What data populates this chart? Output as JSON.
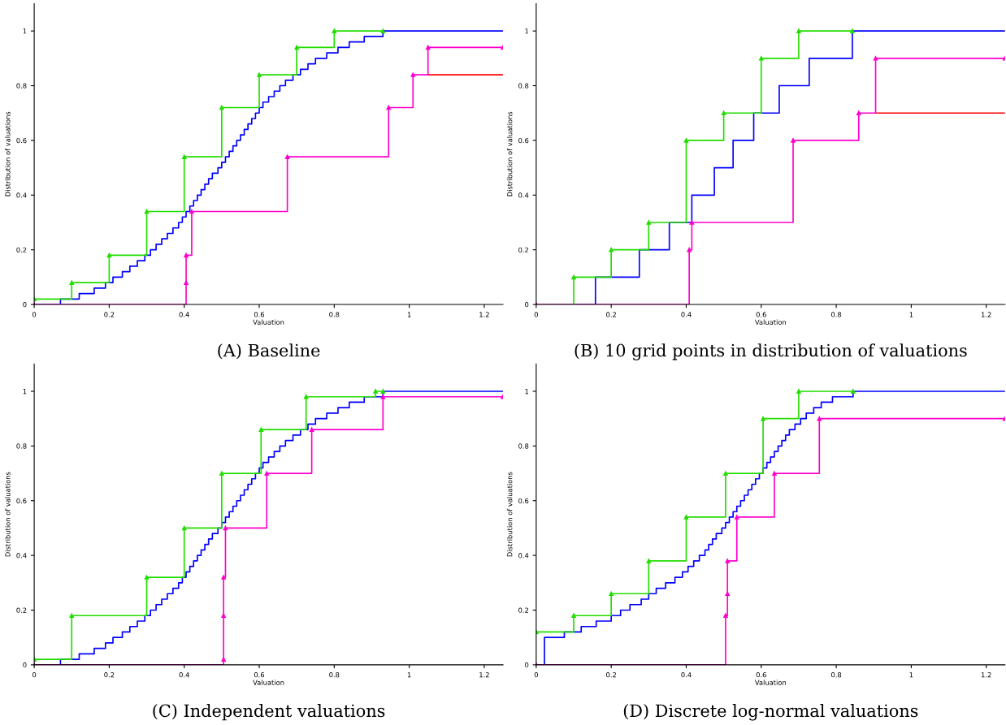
{
  "chart_data": [
    {
      "type": "step",
      "title": "(A) Baseline",
      "xlabel": "Valuation",
      "ylabel": "Distribution of valuations",
      "xlim": [
        0,
        1.25
      ],
      "ylim": [
        0,
        1.1
      ],
      "xticks": [
        0,
        0.2,
        0.4,
        0.6,
        0.8,
        1,
        1.2
      ],
      "yticks": [
        0,
        0.2,
        0.4,
        0.6,
        0.8,
        1
      ],
      "grid": false,
      "legend": false,
      "line_style": "solid",
      "series": [
        {
          "color": "#0000ff",
          "marker": "none",
          "x": [
            0,
            0.07,
            0.12,
            0.16,
            0.19,
            0.21,
            0.235,
            0.255,
            0.275,
            0.295,
            0.31,
            0.325,
            0.34,
            0.355,
            0.37,
            0.385,
            0.395,
            0.405,
            0.415,
            0.425,
            0.435,
            0.445,
            0.455,
            0.465,
            0.475,
            0.49,
            0.5,
            0.51,
            0.52,
            0.53,
            0.54,
            0.55,
            0.56,
            0.57,
            0.58,
            0.59,
            0.6,
            0.61,
            0.625,
            0.64,
            0.655,
            0.67,
            0.69,
            0.71,
            0.73,
            0.75,
            0.78,
            0.81,
            0.84,
            0.88,
            0.93,
            1.25
          ],
          "values": [
            0,
            0.02,
            0.04,
            0.06,
            0.08,
            0.1,
            0.12,
            0.14,
            0.16,
            0.18,
            0.2,
            0.22,
            0.24,
            0.26,
            0.28,
            0.3,
            0.32,
            0.34,
            0.36,
            0.38,
            0.4,
            0.42,
            0.44,
            0.46,
            0.48,
            0.5,
            0.52,
            0.54,
            0.56,
            0.58,
            0.6,
            0.62,
            0.64,
            0.66,
            0.68,
            0.7,
            0.72,
            0.74,
            0.76,
            0.78,
            0.8,
            0.82,
            0.84,
            0.86,
            0.88,
            0.9,
            0.92,
            0.94,
            0.96,
            0.98,
            1,
            1
          ]
        },
        {
          "color": "#22dd00",
          "marker": "triangle",
          "x": [
            0,
            0.1,
            0.2,
            0.3,
            0.4,
            0.5,
            0.6,
            0.7,
            0.8,
            0.93
          ],
          "values": [
            0.02,
            0.08,
            0.18,
            0.34,
            0.54,
            0.72,
            0.84,
            0.94,
            1,
            1
          ]
        },
        {
          "color": "#ff0000",
          "marker": "none",
          "x": [
            1.05,
            1.25
          ],
          "values": [
            0.84,
            0.84
          ]
        },
        {
          "color": "#ff00cc",
          "marker": "triangle",
          "x": [
            0,
            0.405,
            0.405,
            0.42,
            0.675,
            0.945,
            1.01,
            1.05,
            1.25
          ],
          "values": [
            0,
            0.08,
            0.18,
            0.34,
            0.54,
            0.72,
            0.84,
            0.94,
            0.94
          ]
        }
      ]
    },
    {
      "type": "step",
      "title": "(B) 10 grid points in distribution of valuations",
      "xlabel": "Valuation",
      "ylabel": "Distribution of valuations",
      "xlim": [
        0,
        1.25
      ],
      "ylim": [
        0,
        1.1
      ],
      "xticks": [
        0,
        0.2,
        0.4,
        0.6,
        0.8,
        1,
        1.2
      ],
      "yticks": [
        0,
        0.2,
        0.4,
        0.6,
        0.8,
        1
      ],
      "grid": false,
      "legend": false,
      "line_style": "solid",
      "series": [
        {
          "color": "#0000ff",
          "marker": "none",
          "x": [
            0,
            0.158,
            0.275,
            0.355,
            0.415,
            0.475,
            0.525,
            0.58,
            0.648,
            0.728,
            0.843,
            1.25
          ],
          "values": [
            0,
            0.1,
            0.2,
            0.3,
            0.4,
            0.5,
            0.6,
            0.7,
            0.8,
            0.9,
            1,
            1
          ]
        },
        {
          "color": "#22dd00",
          "marker": "triangle",
          "x": [
            0,
            0.1,
            0.2,
            0.3,
            0.4,
            0.5,
            0.6,
            0.7,
            0.843
          ],
          "values": [
            0,
            0.1,
            0.2,
            0.3,
            0.6,
            0.7,
            0.9,
            1,
            1
          ]
        },
        {
          "color": "#ff0000",
          "marker": "none",
          "x": [
            0.905,
            1.25
          ],
          "values": [
            0.7,
            0.7
          ]
        },
        {
          "color": "#ff00cc",
          "marker": "triangle",
          "x": [
            0,
            0.408,
            0.415,
            0.685,
            0.86,
            0.905,
            1.25
          ],
          "values": [
            0,
            0.2,
            0.3,
            0.6,
            0.7,
            0.9,
            0.9
          ]
        }
      ]
    },
    {
      "type": "step",
      "title": "(C) Independent valuations",
      "xlabel": "Valuation",
      "ylabel": "Distribution of valuations",
      "xlim": [
        0,
        1.25
      ],
      "ylim": [
        0,
        1.1
      ],
      "xticks": [
        0,
        0.2,
        0.4,
        0.6,
        0.8,
        1,
        1.2
      ],
      "yticks": [
        0,
        0.2,
        0.4,
        0.6,
        0.8,
        1
      ],
      "grid": false,
      "legend": false,
      "line_style": "solid",
      "series": [
        {
          "color": "#0000ff",
          "marker": "none",
          "x": [
            0,
            0.07,
            0.12,
            0.16,
            0.19,
            0.21,
            0.235,
            0.255,
            0.275,
            0.295,
            0.31,
            0.325,
            0.34,
            0.355,
            0.37,
            0.385,
            0.395,
            0.405,
            0.415,
            0.425,
            0.435,
            0.445,
            0.455,
            0.465,
            0.475,
            0.49,
            0.5,
            0.51,
            0.52,
            0.53,
            0.54,
            0.55,
            0.56,
            0.57,
            0.58,
            0.59,
            0.6,
            0.61,
            0.625,
            0.64,
            0.655,
            0.67,
            0.69,
            0.71,
            0.73,
            0.75,
            0.78,
            0.81,
            0.84,
            0.88,
            0.93,
            1.25
          ],
          "values": [
            0,
            0.02,
            0.04,
            0.06,
            0.08,
            0.1,
            0.12,
            0.14,
            0.16,
            0.18,
            0.2,
            0.22,
            0.24,
            0.26,
            0.28,
            0.3,
            0.32,
            0.34,
            0.36,
            0.38,
            0.4,
            0.42,
            0.44,
            0.46,
            0.48,
            0.5,
            0.52,
            0.54,
            0.56,
            0.58,
            0.6,
            0.62,
            0.64,
            0.66,
            0.68,
            0.7,
            0.72,
            0.74,
            0.76,
            0.78,
            0.8,
            0.82,
            0.84,
            0.86,
            0.88,
            0.9,
            0.92,
            0.94,
            0.96,
            0.98,
            1,
            1
          ]
        },
        {
          "color": "#22dd00",
          "marker": "triangle",
          "x": [
            0,
            0.1,
            0.3,
            0.4,
            0.5,
            0.605,
            0.725,
            0.91,
            0.93
          ],
          "values": [
            0.02,
            0.18,
            0.32,
            0.5,
            0.7,
            0.86,
            0.98,
            1,
            1
          ]
        },
        {
          "color": "#ff00cc",
          "marker": "triangle",
          "x": [
            0,
            0.505,
            0.505,
            0.505,
            0.51,
            0.62,
            0.74,
            0.93,
            1.25
          ],
          "values": [
            0,
            0.02,
            0.18,
            0.32,
            0.5,
            0.7,
            0.86,
            0.98,
            0.98
          ]
        }
      ]
    },
    {
      "type": "step",
      "title": "(D) Discrete log-normal valuations",
      "xlabel": "Valuation",
      "ylabel": "Distribution of valuations",
      "xlim": [
        0,
        1.25
      ],
      "ylim": [
        0,
        1.1
      ],
      "xticks": [
        0,
        0.2,
        0.4,
        0.6,
        0.8,
        1,
        1.2
      ],
      "yticks": [
        0,
        0.2,
        0.4,
        0.6,
        0.8,
        1
      ],
      "grid": false,
      "legend": false,
      "line_style": "solid",
      "series": [
        {
          "color": "#0000ff",
          "marker": "none",
          "x": [
            0,
            0.022,
            0.075,
            0.12,
            0.16,
            0.2,
            0.225,
            0.25,
            0.28,
            0.3,
            0.32,
            0.345,
            0.37,
            0.39,
            0.405,
            0.42,
            0.435,
            0.45,
            0.46,
            0.47,
            0.48,
            0.495,
            0.505,
            0.515,
            0.525,
            0.535,
            0.545,
            0.555,
            0.565,
            0.575,
            0.585,
            0.595,
            0.605,
            0.615,
            0.625,
            0.635,
            0.645,
            0.655,
            0.665,
            0.675,
            0.69,
            0.705,
            0.72,
            0.74,
            0.76,
            0.79,
            0.845,
            1.25
          ],
          "values": [
            0,
            0.1,
            0.12,
            0.14,
            0.16,
            0.18,
            0.2,
            0.22,
            0.24,
            0.26,
            0.28,
            0.3,
            0.32,
            0.34,
            0.36,
            0.38,
            0.4,
            0.42,
            0.44,
            0.46,
            0.48,
            0.5,
            0.52,
            0.54,
            0.56,
            0.58,
            0.6,
            0.62,
            0.64,
            0.66,
            0.68,
            0.7,
            0.72,
            0.74,
            0.76,
            0.78,
            0.8,
            0.82,
            0.84,
            0.86,
            0.88,
            0.9,
            0.92,
            0.94,
            0.96,
            0.98,
            1,
            1
          ]
        },
        {
          "color": "#22dd00",
          "marker": "triangle",
          "x": [
            0,
            0.1,
            0.2,
            0.3,
            0.4,
            0.505,
            0.605,
            0.7,
            0.845
          ],
          "values": [
            0.12,
            0.18,
            0.26,
            0.38,
            0.54,
            0.7,
            0.9,
            1,
            1
          ]
        },
        {
          "color": "#ff00cc",
          "marker": "triangle",
          "x": [
            0,
            0.505,
            0.51,
            0.51,
            0.535,
            0.635,
            0.755,
            1.25
          ],
          "values": [
            0,
            0.18,
            0.26,
            0.38,
            0.54,
            0.7,
            0.9,
            0.9
          ]
        }
      ]
    }
  ]
}
